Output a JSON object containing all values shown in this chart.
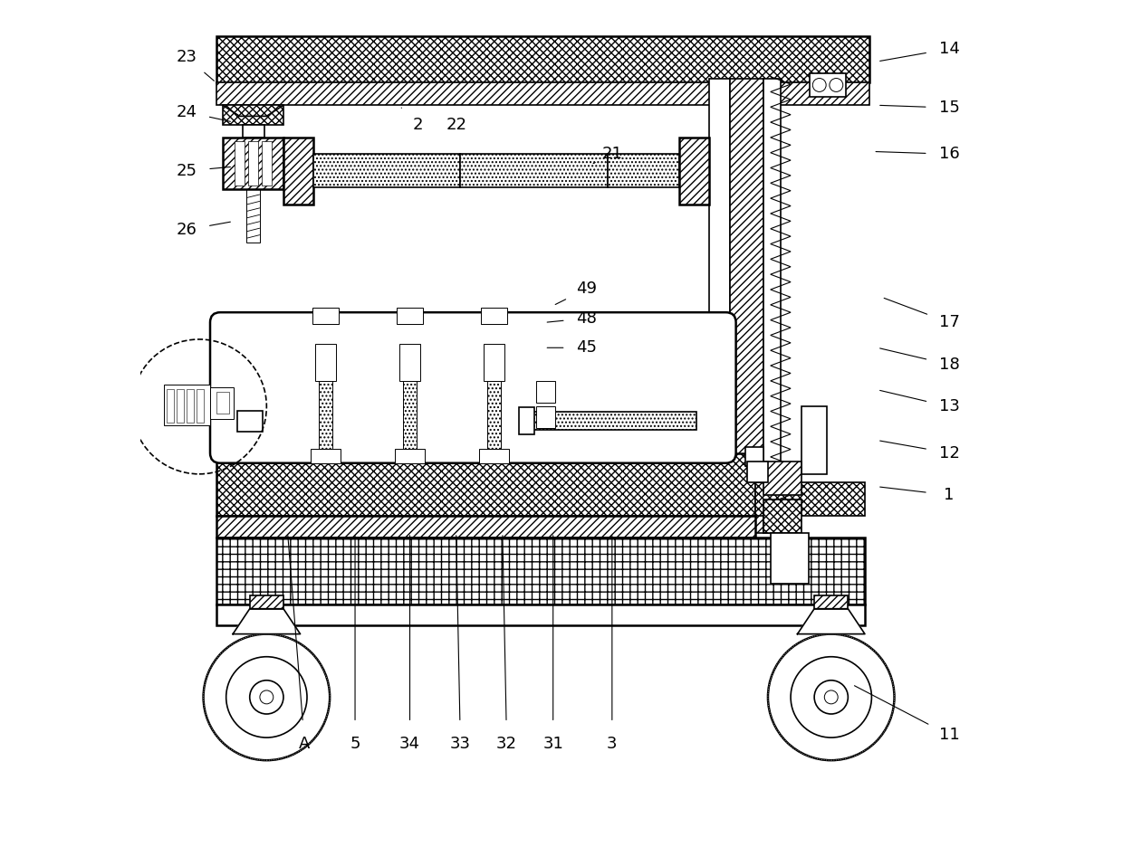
{
  "bg_color": "#ffffff",
  "line_color": "#000000",
  "figure_width": 12.4,
  "figure_height": 9.36,
  "label_points": {
    "23": [
      0.055,
      0.935,
      0.09,
      0.905
    ],
    "24": [
      0.055,
      0.87,
      0.11,
      0.858
    ],
    "25": [
      0.055,
      0.8,
      0.11,
      0.805
    ],
    "26": [
      0.055,
      0.73,
      0.11,
      0.74
    ],
    "2": [
      0.33,
      0.855,
      0.31,
      0.875
    ],
    "22": [
      0.375,
      0.855,
      0.36,
      0.875
    ],
    "21": [
      0.56,
      0.82,
      0.54,
      0.81
    ],
    "14": [
      0.96,
      0.945,
      0.875,
      0.93
    ],
    "15": [
      0.96,
      0.875,
      0.875,
      0.878
    ],
    "16": [
      0.96,
      0.82,
      0.87,
      0.823
    ],
    "17": [
      0.96,
      0.62,
      0.88,
      0.65
    ],
    "18": [
      0.96,
      0.57,
      0.875,
      0.59
    ],
    "13": [
      0.96,
      0.52,
      0.875,
      0.54
    ],
    "12": [
      0.96,
      0.465,
      0.875,
      0.48
    ],
    "1": [
      0.96,
      0.415,
      0.875,
      0.425
    ],
    "49": [
      0.53,
      0.66,
      0.49,
      0.64
    ],
    "48": [
      0.53,
      0.625,
      0.48,
      0.62
    ],
    "45": [
      0.53,
      0.59,
      0.48,
      0.59
    ],
    "A": [
      0.195,
      0.12,
      0.175,
      0.37
    ],
    "5": [
      0.255,
      0.12,
      0.255,
      0.37
    ],
    "34": [
      0.32,
      0.12,
      0.32,
      0.37
    ],
    "33": [
      0.38,
      0.12,
      0.375,
      0.37
    ],
    "32": [
      0.435,
      0.12,
      0.43,
      0.37
    ],
    "31": [
      0.49,
      0.12,
      0.49,
      0.37
    ],
    "3": [
      0.56,
      0.12,
      0.56,
      0.37
    ],
    "11": [
      0.96,
      0.13,
      0.845,
      0.19
    ]
  }
}
